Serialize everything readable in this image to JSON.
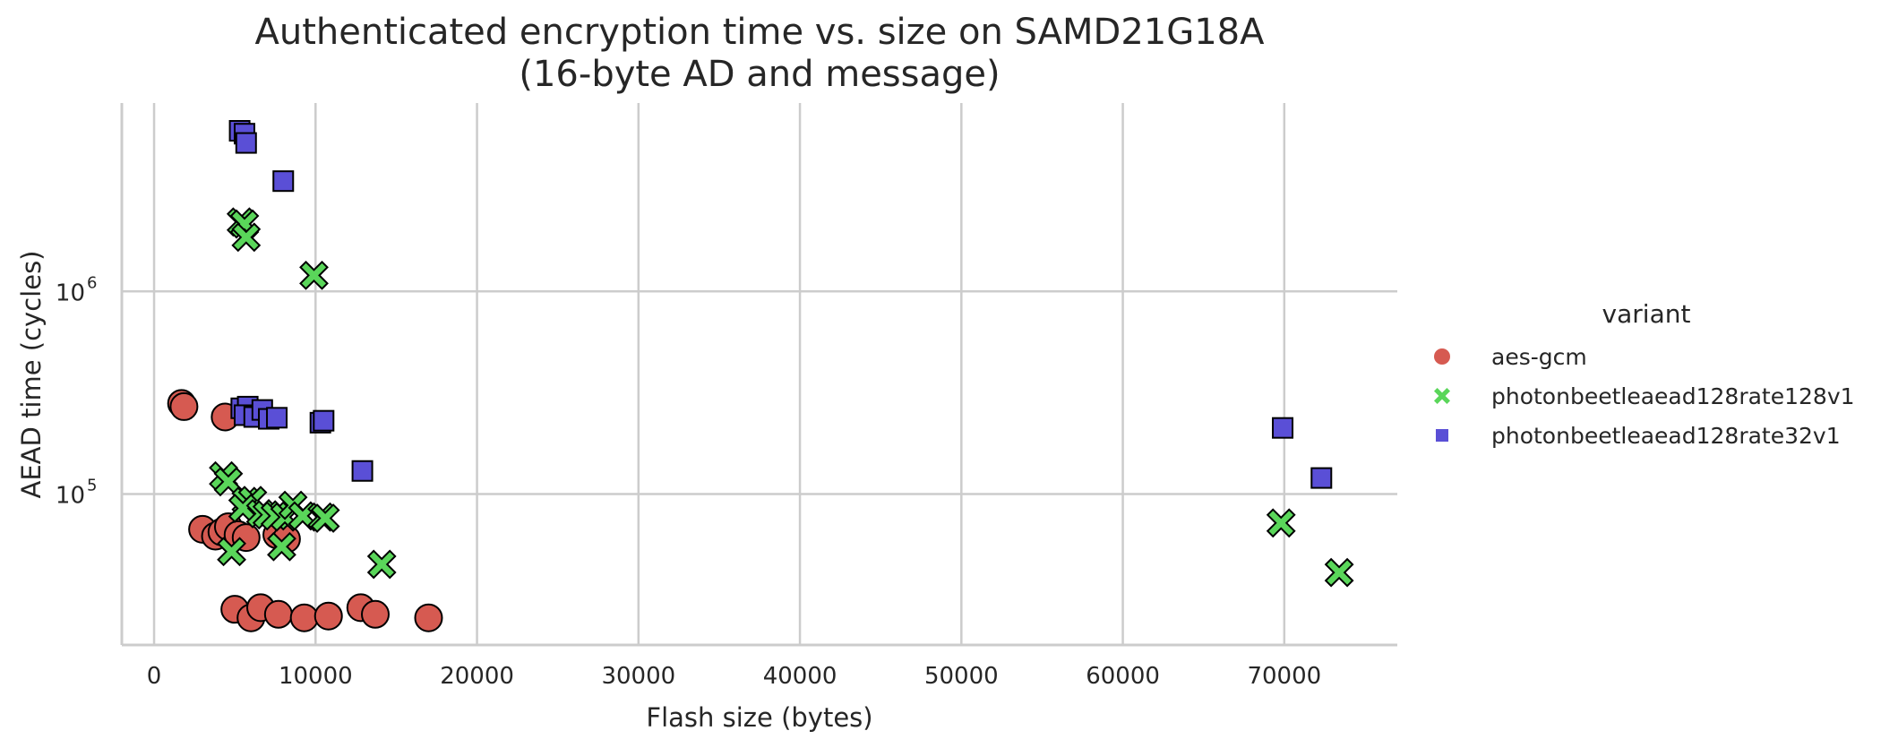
{
  "chart_data": {
    "type": "scatter",
    "title_lines": [
      "Authenticated encryption time vs. size on SAMD21G18A",
      "(16-byte AD and message)"
    ],
    "xlabel": "Flash size (bytes)",
    "ylabel": "AEAD time (cycles)",
    "xscale": "linear",
    "yscale": "log",
    "xlim": [
      -2000,
      77000
    ],
    "ylim": [
      18000,
      8500000
    ],
    "xticks": [
      0,
      10000,
      20000,
      30000,
      40000,
      50000,
      60000,
      70000
    ],
    "xtick_labels": [
      "0",
      "10000",
      "20000",
      "30000",
      "40000",
      "50000",
      "60000",
      "70000"
    ],
    "yticks": [
      100000,
      1000000
    ],
    "ytick_labels": [
      {
        "base": "10",
        "exp": "5"
      },
      {
        "base": "10",
        "exp": "6"
      }
    ],
    "grid": true,
    "legend": {
      "title": "variant",
      "position": "right"
    },
    "series": [
      {
        "name": "aes-gcm",
        "marker": "circle",
        "color": "#d65a51",
        "points": [
          [
            1700,
            280000
          ],
          [
            1850,
            270000
          ],
          [
            4400,
            240000
          ],
          [
            3000,
            67000
          ],
          [
            3800,
            62000
          ],
          [
            4200,
            65000
          ],
          [
            4600,
            69000
          ],
          [
            5200,
            63000
          ],
          [
            5700,
            61000
          ],
          [
            7600,
            63000
          ],
          [
            8200,
            60000
          ],
          [
            5000,
            27000
          ],
          [
            6000,
            24500
          ],
          [
            6600,
            27500
          ],
          [
            7700,
            25500
          ],
          [
            9300,
            24500
          ],
          [
            10800,
            25000
          ],
          [
            12800,
            27500
          ],
          [
            13700,
            25500
          ],
          [
            17000,
            24500
          ]
        ]
      },
      {
        "name": "photonbeetleaead128rate128v1",
        "marker": "x",
        "color": "#5ad65a",
        "points": [
          [
            5400,
            2200000
          ],
          [
            5600,
            2150000
          ],
          [
            5700,
            1850000
          ],
          [
            9900,
            1200000
          ],
          [
            4300,
            123000
          ],
          [
            4600,
            115000
          ],
          [
            5700,
            92000
          ],
          [
            6100,
            93000
          ],
          [
            5500,
            85000
          ],
          [
            6600,
            80000
          ],
          [
            7000,
            79000
          ],
          [
            7500,
            78000
          ],
          [
            8100,
            77000
          ],
          [
            8600,
            88000
          ],
          [
            9200,
            78000
          ],
          [
            10400,
            77000
          ],
          [
            10600,
            76000
          ],
          [
            4800,
            52000
          ],
          [
            7900,
            55000
          ],
          [
            14100,
            45000
          ],
          [
            69800,
            72000
          ],
          [
            73400,
            41000
          ]
        ]
      },
      {
        "name": "photonbeetleaead128rate32v1",
        "marker": "square",
        "color": "#5a4fd6",
        "points": [
          [
            5300,
            6200000
          ],
          [
            5600,
            6000000
          ],
          [
            5700,
            5400000
          ],
          [
            8000,
            3500000
          ],
          [
            5400,
            265000
          ],
          [
            5800,
            270000
          ],
          [
            5600,
            245000
          ],
          [
            6200,
            240000
          ],
          [
            6700,
            260000
          ],
          [
            7100,
            235000
          ],
          [
            7600,
            238000
          ],
          [
            10300,
            225000
          ],
          [
            10500,
            230000
          ],
          [
            12900,
            130000
          ],
          [
            69900,
            212000
          ],
          [
            72300,
            120000
          ]
        ]
      }
    ]
  }
}
